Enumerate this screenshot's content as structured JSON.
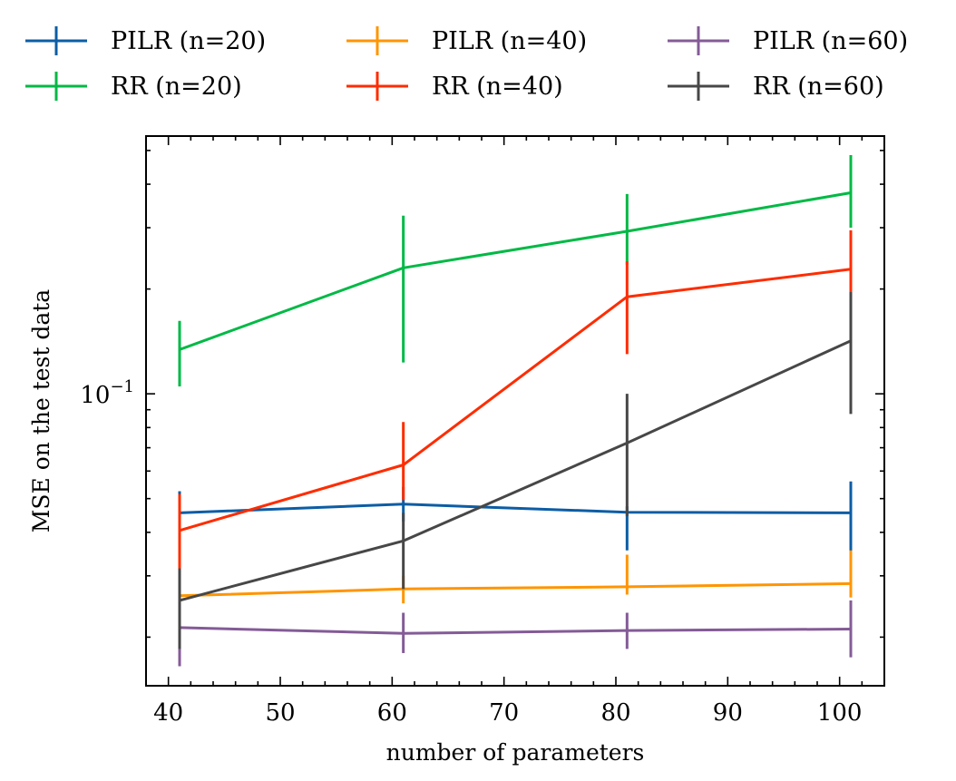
{
  "chart_data": {
    "type": "line",
    "title": "",
    "xlabel": "number of parameters",
    "ylabel": "MSE on the test data",
    "yscale": "log",
    "xlim": [
      38,
      104
    ],
    "ylim": [
      0.0145,
      0.55
    ],
    "x": [
      41,
      61,
      81,
      101
    ],
    "x_ticks": [
      40,
      50,
      60,
      70,
      80,
      90,
      100
    ],
    "x_tick_labels": [
      "40",
      "50",
      "60",
      "70",
      "80",
      "90",
      "100"
    ],
    "y_major_tick": {
      "value": 0.1,
      "base": "10",
      "exponent": "−1"
    },
    "legend_position": "top, outside, 3 columns",
    "series": [
      {
        "name": "PILR (n=20)",
        "color": "#0C5DA5",
        "values": [
          0.0455,
          0.0482,
          0.0457,
          0.0455
        ],
        "lower": [
          0.039,
          0.043,
          0.0355,
          0.035
        ],
        "upper": [
          0.0525,
          0.054,
          0.0475,
          0.056
        ]
      },
      {
        "name": "RR (n=20)",
        "color": "#00B945",
        "values": [
          0.134,
          0.23,
          0.293,
          0.378
        ],
        "lower": [
          0.105,
          0.123,
          0.235,
          0.3
        ],
        "upper": [
          0.162,
          0.325,
          0.375,
          0.485
        ]
      },
      {
        "name": "PILR (n=40)",
        "color": "#FF9500",
        "values": [
          0.0263,
          0.0275,
          0.0279,
          0.0285
        ],
        "lower": [
          0.0245,
          0.025,
          0.0265,
          0.026
        ],
        "upper": [
          0.0285,
          0.03,
          0.0345,
          0.0355
        ]
      },
      {
        "name": "RR (n=40)",
        "color": "#FF2C00",
        "values": [
          0.0405,
          0.0625,
          0.19,
          0.228
        ],
        "lower": [
          0.0295,
          0.0495,
          0.13,
          0.175
        ],
        "upper": [
          0.0515,
          0.083,
          0.24,
          0.295
        ]
      },
      {
        "name": "PILR (n=60)",
        "color": "#845B97",
        "values": [
          0.0213,
          0.0205,
          0.0209,
          0.0211
        ],
        "lower": [
          0.0165,
          0.018,
          0.0185,
          0.0175
        ],
        "upper": [
          0.025,
          0.0235,
          0.0235,
          0.0255
        ]
      },
      {
        "name": "RR (n=60)",
        "color": "#474747",
        "values": [
          0.0255,
          0.0378,
          0.0722,
          0.142
        ],
        "lower": [
          0.0185,
          0.0275,
          0.0445,
          0.0875
        ],
        "upper": [
          0.0315,
          0.0455,
          0.1,
          0.196
        ]
      }
    ]
  }
}
